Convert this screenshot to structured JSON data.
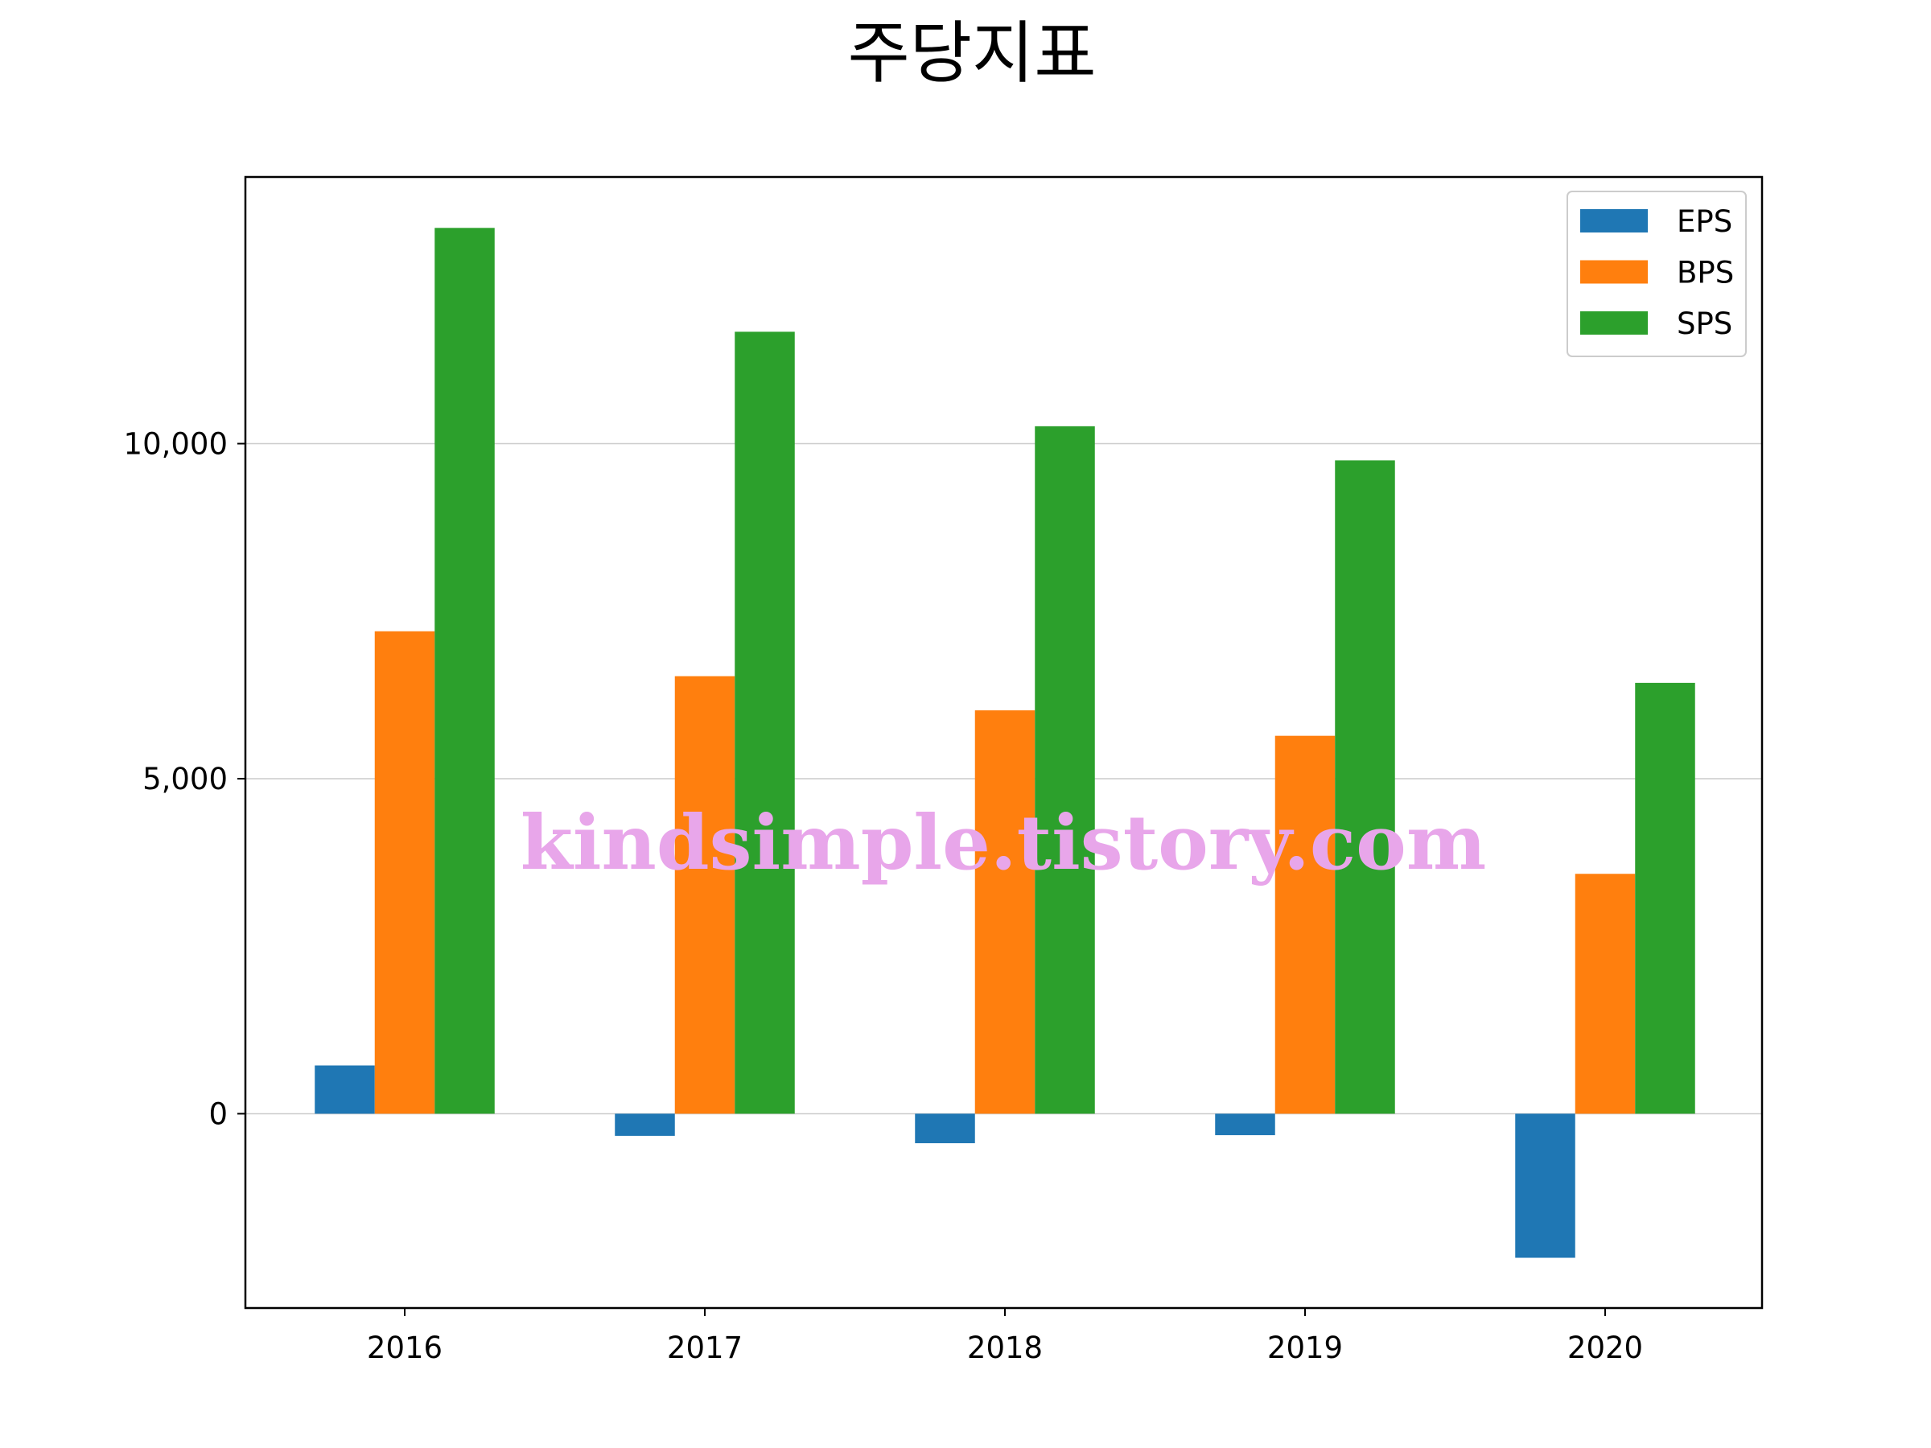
{
  "chart_data": {
    "type": "bar",
    "title": "주당지표",
    "xlabel": "",
    "ylabel": "",
    "categories": [
      "2016",
      "2017",
      "2018",
      "2019",
      "2020"
    ],
    "series": [
      {
        "name": "EPS",
        "color": "#1f77b4",
        "values": [
          720,
          -330,
          -440,
          -320,
          -2150
        ]
      },
      {
        "name": "BPS",
        "color": "#ff7f0e",
        "values": [
          7200,
          6530,
          6020,
          5640,
          3580
        ]
      },
      {
        "name": "SPS",
        "color": "#2ca02c",
        "values": [
          13220,
          11670,
          10260,
          9750,
          6430
        ]
      }
    ],
    "ylim": [
      -2900,
      13980
    ],
    "yticks": [
      0,
      5000,
      10000
    ],
    "ytick_labels": [
      "0",
      "5,000",
      "10,000"
    ],
    "grid": "y",
    "legend": "top-right"
  },
  "watermark": {
    "text": "kindsimple.tistory.com"
  }
}
